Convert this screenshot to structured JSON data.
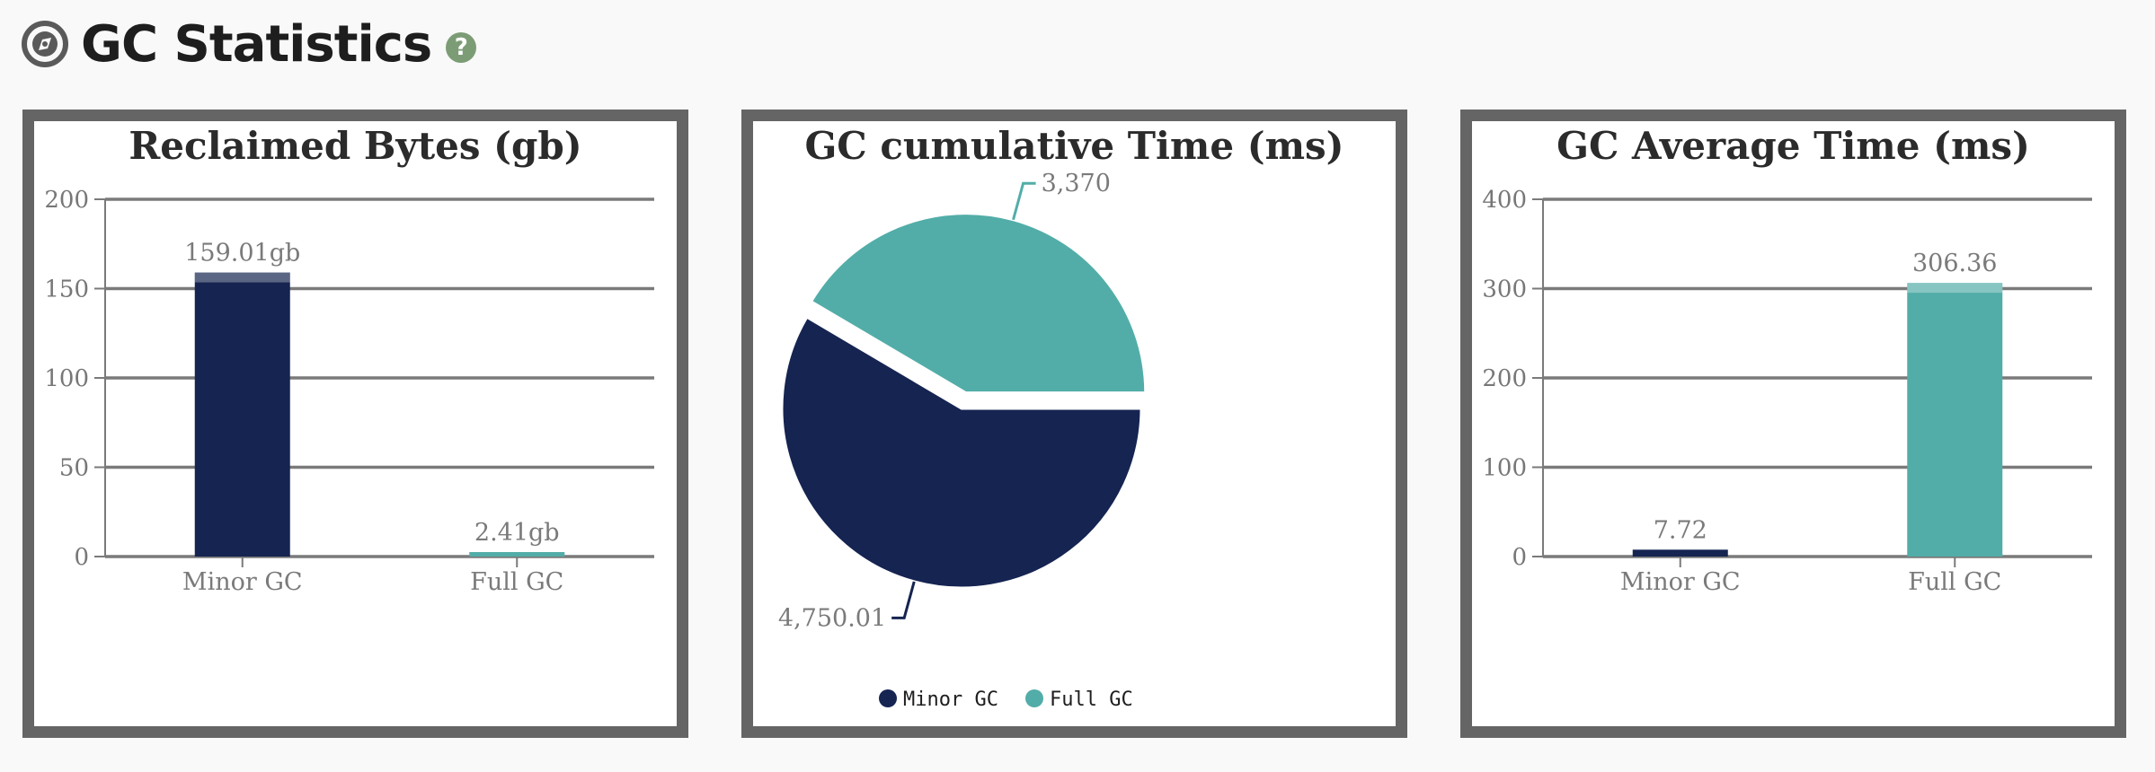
{
  "page": {
    "title": "GC Statistics",
    "help_icon": "?",
    "logo_icon": "compass-icon"
  },
  "colors": {
    "minor": "#152451",
    "full": "#52ada8"
  },
  "chart_data": [
    {
      "type": "bar",
      "title": "Reclaimed Bytes (gb)",
      "categories": [
        "Minor GC",
        "Full GC"
      ],
      "values": [
        159.01,
        2.41
      ],
      "data_labels": [
        "159.01gb",
        "2.41gb"
      ],
      "ylim": [
        0,
        200
      ],
      "yticks": [
        "0",
        "50",
        "100",
        "150",
        "200"
      ],
      "grid": true
    },
    {
      "type": "pie",
      "title": "GC cumulative Time (ms)",
      "categories": [
        "Minor GC",
        "Full GC"
      ],
      "values": [
        4750.01,
        3370
      ],
      "data_labels": [
        "4,750.01",
        "3,370"
      ],
      "legend": [
        "Minor GC",
        "Full GC"
      ],
      "legend_position": "bottom"
    },
    {
      "type": "bar",
      "title": "GC Average Time (ms)",
      "categories": [
        "Minor GC",
        "Full GC"
      ],
      "values": [
        7.72,
        306.36
      ],
      "data_labels": [
        "7.72",
        "306.36"
      ],
      "ylim": [
        0,
        400
      ],
      "yticks": [
        "0",
        "100",
        "200",
        "300",
        "400"
      ],
      "grid": true
    }
  ]
}
